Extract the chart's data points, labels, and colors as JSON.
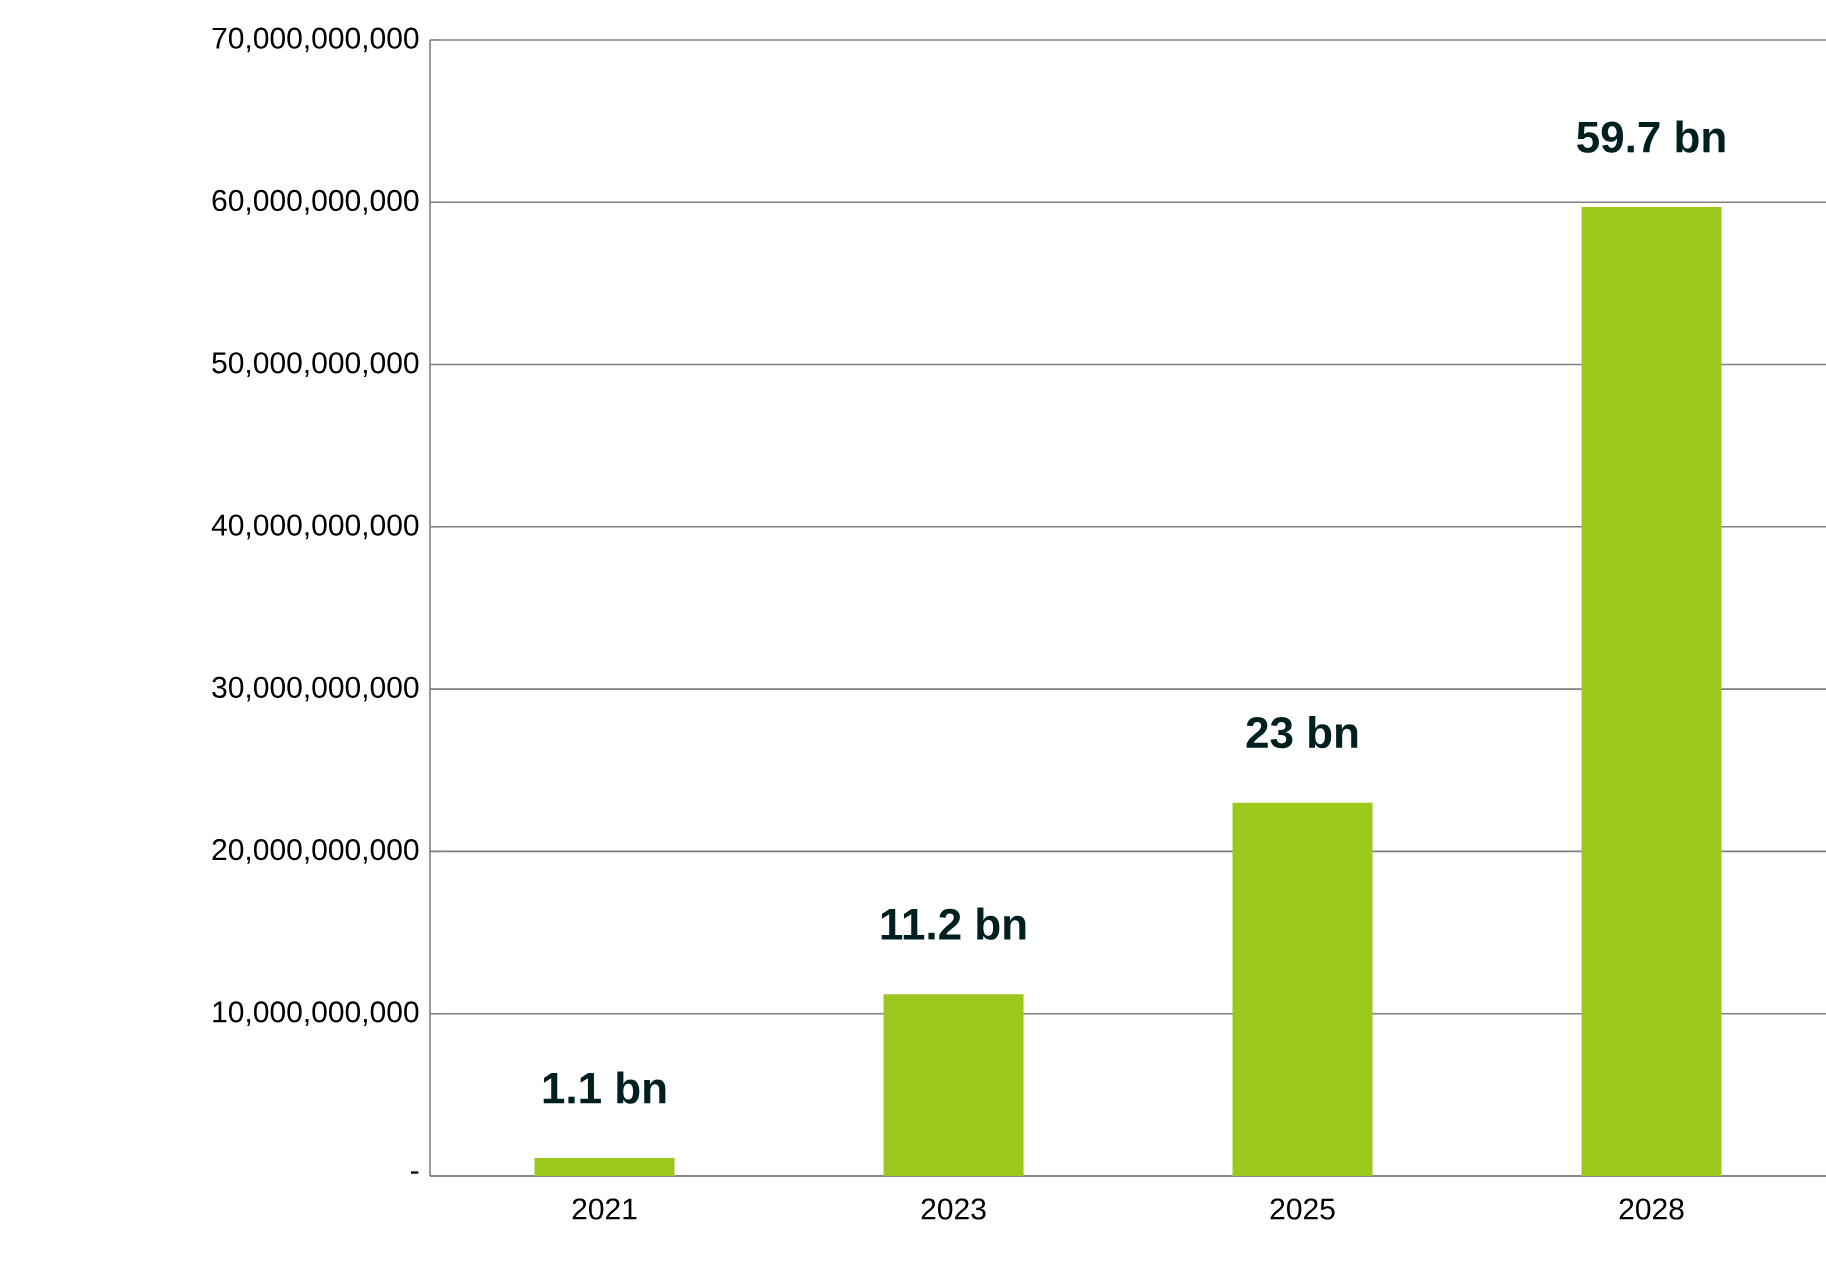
{
  "chart_data": {
    "type": "bar",
    "categories": [
      "2021",
      "2023",
      "2025",
      "2028"
    ],
    "values": [
      1100000000,
      11200000000,
      23000000000,
      59700000000
    ],
    "value_labels": [
      "1.1 bn",
      "11.2 bn",
      "23 bn",
      "59.7 bn"
    ],
    "color": "#9cc71c",
    "ylim": [
      0,
      70000000000
    ],
    "yticks": [
      {
        "value": 0,
        "label": "-"
      },
      {
        "value": 10000000000,
        "label": "10,000,000,000"
      },
      {
        "value": 20000000000,
        "label": "20,000,000,000"
      },
      {
        "value": 30000000000,
        "label": "30,000,000,000"
      },
      {
        "value": 40000000000,
        "label": "40,000,000,000"
      },
      {
        "value": 50000000000,
        "label": "50,000,000,000"
      },
      {
        "value": 60000000000,
        "label": "60,000,000,000"
      },
      {
        "value": 70000000000,
        "label": "70,000,000,000"
      }
    ],
    "grid": "y"
  }
}
